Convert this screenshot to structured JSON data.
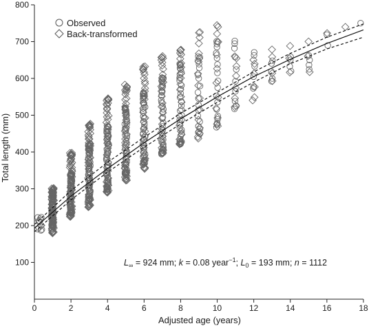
{
  "chart_data": {
    "type": "scatter",
    "xlabel": "Adjusted age (years)",
    "ylabel": "Total length (mm)",
    "xlim": [
      0,
      18
    ],
    "ylim": [
      0,
      800
    ],
    "xticks": [
      "0",
      "2",
      "4",
      "6",
      "8",
      "10",
      "12",
      "14",
      "16",
      "18"
    ],
    "yticks": [
      "100",
      "200",
      "300",
      "400",
      "500",
      "600",
      "700",
      "800"
    ],
    "legend_position": "top-left",
    "legend": [
      {
        "label": "Observed",
        "marker": "circle"
      },
      {
        "label": "Back-transformed",
        "marker": "diamond"
      }
    ],
    "annotation": {
      "linf_label": "L",
      "linf_sub": "∞",
      "linf_value": " = 924 mm; ",
      "k_label": "k",
      "k_value": " = 0.08 year",
      "k_sup": "−1",
      "sep": "; ",
      "l0_label": "L",
      "l0_sub": "0",
      "l0_value": " = 193 mm; ",
      "n_label": "n",
      "n_value": " = 1112"
    },
    "von_bertalanffy": {
      "Linf": 924,
      "k": 0.08,
      "L0": 193
    },
    "fitted_curves": [
      {
        "style": "solid",
        "x": [
          0,
          2,
          4,
          6,
          8,
          10,
          12,
          14,
          16,
          18
        ],
        "y": [
          193,
          280,
          355,
          425,
          490,
          550,
          605,
          652,
          695,
          732
        ]
      },
      {
        "style": "dashed",
        "x": [
          0,
          2,
          4,
          6,
          8,
          10,
          12,
          14,
          16,
          18
        ],
        "y": [
          203,
          295,
          372,
          440,
          505,
          562,
          618,
          668,
          712,
          748
        ]
      },
      {
        "style": "dashed",
        "x": [
          0,
          2,
          4,
          6,
          8,
          10,
          12,
          14,
          16,
          18
        ],
        "y": [
          183,
          270,
          345,
          413,
          476,
          535,
          590,
          640,
          680,
          712
        ]
      }
    ],
    "point_groups": {
      "observed": [
        {
          "x": 0.3,
          "y_range": [
            185,
            225
          ],
          "n": 8
        },
        {
          "x": 1,
          "y_range": [
            200,
            290
          ],
          "n": 60
        },
        {
          "x": 2,
          "y_range": [
            235,
            340
          ],
          "n": 60
        },
        {
          "x": 3,
          "y_range": [
            270,
            420
          ],
          "n": 55
        },
        {
          "x": 4,
          "y_range": [
            300,
            470
          ],
          "n": 50
        },
        {
          "x": 5,
          "y_range": [
            340,
            520
          ],
          "n": 45
        },
        {
          "x": 6,
          "y_range": [
            370,
            560
          ],
          "n": 40
        },
        {
          "x": 7,
          "y_range": [
            395,
            600
          ],
          "n": 35
        },
        {
          "x": 8,
          "y_range": [
            420,
            640
          ],
          "n": 30
        },
        {
          "x": 9,
          "y_range": [
            450,
            660
          ],
          "n": 20
        },
        {
          "x": 10,
          "y_range": [
            470,
            700
          ],
          "n": 18
        },
        {
          "x": 11,
          "y_range": [
            520,
            700
          ],
          "n": 10
        },
        {
          "x": 12,
          "y_range": [
            570,
            670
          ],
          "n": 6
        },
        {
          "x": 13,
          "y_range": [
            590,
            650
          ],
          "n": 5
        },
        {
          "x": 14,
          "y_range": [
            620,
            660
          ],
          "n": 4
        },
        {
          "x": 15,
          "y_range": [
            625,
            660
          ],
          "n": 4
        },
        {
          "x": 16,
          "y_range": [
            690,
            720
          ],
          "n": 2
        },
        {
          "x": 17.8,
          "y_range": [
            745,
            750
          ],
          "n": 1
        }
      ],
      "back_transformed": [
        {
          "x": 0.3,
          "y_range": [
            195,
            215
          ],
          "n": 4
        },
        {
          "x": 1,
          "y_range": [
            180,
            300
          ],
          "n": 55
        },
        {
          "x": 2,
          "y_range": [
            225,
            395
          ],
          "n": 55
        },
        {
          "x": 3,
          "y_range": [
            250,
            475
          ],
          "n": 50
        },
        {
          "x": 4,
          "y_range": [
            290,
            545
          ],
          "n": 45
        },
        {
          "x": 5,
          "y_range": [
            325,
            580
          ],
          "n": 40
        },
        {
          "x": 6,
          "y_range": [
            355,
            630
          ],
          "n": 35
        },
        {
          "x": 7,
          "y_range": [
            395,
            660
          ],
          "n": 30
        },
        {
          "x": 8,
          "y_range": [
            420,
            680
          ],
          "n": 25
        },
        {
          "x": 9,
          "y_range": [
            435,
            725
          ],
          "n": 15
        },
        {
          "x": 10,
          "y_range": [
            470,
            745
          ],
          "n": 12
        },
        {
          "x": 11,
          "y_range": [
            520,
            660
          ],
          "n": 8
        },
        {
          "x": 12,
          "y_range": [
            540,
            650
          ],
          "n": 6
        },
        {
          "x": 13,
          "y_range": [
            590,
            680
          ],
          "n": 4
        },
        {
          "x": 14,
          "y_range": [
            615,
            690
          ],
          "n": 3
        },
        {
          "x": 15,
          "y_range": [
            620,
            700
          ],
          "n": 3
        },
        {
          "x": 16,
          "y_range": [
            720,
            725
          ],
          "n": 1
        },
        {
          "x": 17,
          "y_range": [
            735,
            740
          ],
          "n": 1
        }
      ]
    }
  }
}
